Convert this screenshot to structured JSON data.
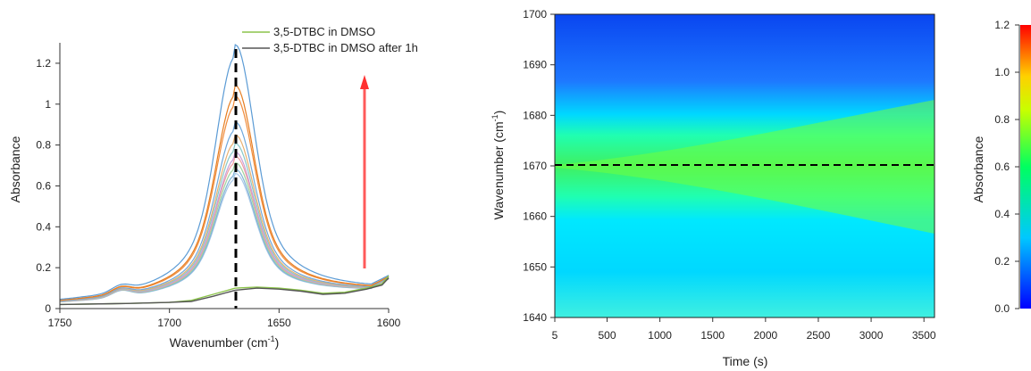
{
  "chart_data": [
    {
      "type": "line",
      "xlabel_main": "Wavenumber (cm",
      "xlabel_sup": "-1",
      "xlabel_tail": ")",
      "ylabel": "Absorbance",
      "xlim": [
        1750,
        1600
      ],
      "ylim": [
        0,
        1.3
      ],
      "xticks": [
        1750,
        1700,
        1650,
        1600
      ],
      "yticks": [
        0,
        0.2,
        0.4,
        0.6,
        0.8,
        1,
        1.2
      ],
      "grid": false,
      "legend": {
        "placement": "top-right",
        "entries": [
          {
            "label": "3,5-DTBC in DMSO",
            "color": "#8bc34a"
          },
          {
            "label": "3,5-DTBC in DMSO after 1h",
            "color": "#555555"
          }
        ]
      },
      "annotations": {
        "dashed_line_x": 1670,
        "arrow": {
          "x": 1610,
          "y_from": 0.2,
          "y_to": 1.1,
          "color": "#ff4d4d"
        }
      },
      "series": [
        {
          "name": "3,5-DTBC in DMSO",
          "color": "#8bc34a",
          "x": [
            1750,
            1720,
            1700,
            1690,
            1680,
            1670,
            1660,
            1650,
            1640,
            1630,
            1620,
            1610,
            1603,
            1600
          ],
          "y": [
            0.02,
            0.025,
            0.03,
            0.04,
            0.07,
            0.1,
            0.105,
            0.1,
            0.09,
            0.075,
            0.08,
            0.1,
            0.12,
            0.16
          ]
        },
        {
          "name": "3,5-DTBC in DMSO after 1h",
          "color": "#555555",
          "x": [
            1750,
            1720,
            1700,
            1690,
            1680,
            1670,
            1660,
            1650,
            1640,
            1630,
            1620,
            1610,
            1603,
            1600
          ],
          "y": [
            0.02,
            0.025,
            0.03,
            0.035,
            0.06,
            0.09,
            0.1,
            0.095,
            0.085,
            0.07,
            0.075,
            0.095,
            0.115,
            0.15
          ]
        }
      ],
      "kinetic_spectra": [
        {
          "color": "#a8c8e8",
          "peak": 0.6
        },
        {
          "color": "#7fb3d5",
          "peak": 0.62
        },
        {
          "color": "#9fd39f",
          "peak": 0.65
        },
        {
          "color": "#f0a0a0",
          "peak": 0.68
        },
        {
          "color": "#c8a0d8",
          "peak": 0.7
        },
        {
          "color": "#88c8c8",
          "peak": 0.74
        },
        {
          "color": "#e8b070",
          "peak": 0.78
        },
        {
          "color": "#6fa8dc",
          "peak": 0.84
        },
        {
          "color": "#f08c3c",
          "peak": 0.96
        },
        {
          "color": "#e67e22",
          "peak": 1.01
        },
        {
          "color": "#5b9bd5",
          "peak": 1.2
        }
      ]
    },
    {
      "type": "heatmap",
      "xlabel": "Time (s)",
      "ylabel_main": "Wavenumber (cm",
      "ylabel_sup": "-1",
      "ylabel_tail": ")",
      "xlim": [
        5,
        3600
      ],
      "ylim": [
        1640,
        1700
      ],
      "xticks": [
        5,
        500,
        1000,
        1500,
        2000,
        2500,
        3000,
        3500
      ],
      "yticks": [
        1640,
        1650,
        1660,
        1670,
        1680,
        1690,
        1700
      ],
      "dashed_line_y": 1670,
      "peak_wavenumber": 1670,
      "value_range": [
        0,
        1.2
      ]
    },
    {
      "type": "colorbar",
      "label": "Absorbance",
      "range": [
        0,
        1.2
      ],
      "ticks": [
        "0.0",
        "0.2",
        "0.4",
        "0.6",
        "0.8",
        "1.0",
        "1.2"
      ]
    }
  ]
}
